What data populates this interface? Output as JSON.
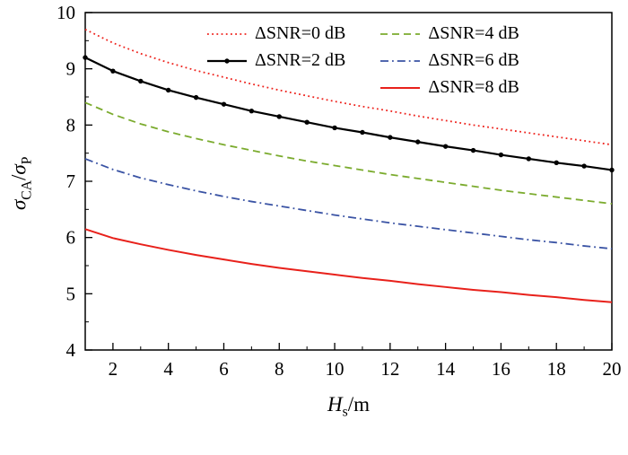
{
  "figure": {
    "background": "#ffffff"
  },
  "labels": {
    "y_var1": "σ",
    "y_sub1": "CA",
    "y_slash": "/",
    "y_var2": "σ",
    "y_sub2": "P",
    "x_var": "H",
    "x_sub": "s",
    "x_unit": "/m"
  },
  "chart_data": {
    "type": "line",
    "title": "",
    "xlabel": "Hs/m",
    "ylabel": "σCA/σP",
    "xlim": [
      1,
      20
    ],
    "ylim": [
      4,
      10
    ],
    "xticks": [
      2,
      4,
      6,
      8,
      10,
      12,
      14,
      16,
      18,
      20
    ],
    "yticks": [
      4,
      5,
      6,
      7,
      8,
      9,
      10
    ],
    "grid": false,
    "legend_position": "top-inside, two columns, no border",
    "x": [
      1,
      2,
      3,
      4,
      5,
      6,
      7,
      8,
      9,
      10,
      11,
      12,
      13,
      14,
      15,
      16,
      17,
      18,
      19,
      20
    ],
    "series": [
      {
        "name": "ΔSNR=0 dB",
        "color": "#ee221c",
        "style": "dotted",
        "marker": "none",
        "width": 1.8,
        "values": [
          9.7,
          9.46,
          9.27,
          9.11,
          8.97,
          8.85,
          8.73,
          8.62,
          8.52,
          8.42,
          8.33,
          8.25,
          8.16,
          8.08,
          8.0,
          7.93,
          7.86,
          7.79,
          7.72,
          7.65
        ]
      },
      {
        "name": "ΔSNR=2 dB",
        "color": "#000000",
        "style": "solid",
        "marker": "dot",
        "width": 2.2,
        "values": [
          9.2,
          8.96,
          8.78,
          8.62,
          8.49,
          8.37,
          8.25,
          8.15,
          8.05,
          7.95,
          7.87,
          7.78,
          7.7,
          7.62,
          7.55,
          7.47,
          7.4,
          7.33,
          7.27,
          7.2
        ]
      },
      {
        "name": "ΔSNR=4 dB",
        "color": "#7bab2e",
        "style": "dashed",
        "marker": "none",
        "width": 1.8,
        "values": [
          8.4,
          8.19,
          8.02,
          7.88,
          7.76,
          7.65,
          7.55,
          7.45,
          7.36,
          7.28,
          7.2,
          7.12,
          7.05,
          6.98,
          6.91,
          6.84,
          6.78,
          6.72,
          6.66,
          6.6
        ]
      },
      {
        "name": "ΔSNR=6 dB",
        "color": "#3a53a4",
        "style": "dashdot",
        "marker": "none",
        "width": 1.8,
        "values": [
          7.4,
          7.21,
          7.06,
          6.94,
          6.83,
          6.73,
          6.64,
          6.56,
          6.48,
          6.4,
          6.33,
          6.26,
          6.2,
          6.14,
          6.08,
          6.02,
          5.96,
          5.91,
          5.85,
          5.8
        ]
      },
      {
        "name": "ΔSNR=8 dB",
        "color": "#e8211b",
        "style": "solid",
        "marker": "none",
        "width": 2.0,
        "values": [
          6.15,
          5.99,
          5.88,
          5.78,
          5.69,
          5.61,
          5.53,
          5.46,
          5.4,
          5.34,
          5.28,
          5.23,
          5.17,
          5.12,
          5.07,
          5.03,
          4.98,
          4.94,
          4.89,
          4.85
        ]
      }
    ],
    "legend": {
      "columns": [
        [
          0,
          1
        ],
        [
          2,
          3,
          4
        ]
      ]
    }
  }
}
